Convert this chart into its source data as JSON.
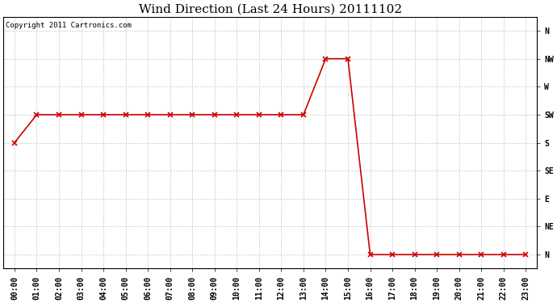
{
  "title": "Wind Direction (Last 24 Hours) 20111102",
  "copyright_text": "Copyright 2011 Cartronics.com",
  "background_color": "#ffffff",
  "plot_bg_color": "#ffffff",
  "line_color": "#cc0000",
  "grid_color": "#c8c8c8",
  "x_labels": [
    "00:00",
    "01:00",
    "02:00",
    "03:00",
    "04:00",
    "05:00",
    "06:00",
    "07:00",
    "08:00",
    "09:00",
    "10:00",
    "11:00",
    "12:00",
    "13:00",
    "14:00",
    "15:00",
    "16:00",
    "17:00",
    "18:00",
    "19:00",
    "20:00",
    "21:00",
    "22:00",
    "23:00"
  ],
  "y_labels_top_to_bottom": [
    "N",
    "NW",
    "W",
    "SW",
    "S",
    "SE",
    "E",
    "NE",
    "N"
  ],
  "data_hours": [
    0,
    1,
    2,
    3,
    4,
    5,
    6,
    7,
    8,
    9,
    10,
    11,
    12,
    13,
    14,
    15,
    16,
    17,
    18,
    19,
    20,
    21,
    22,
    23
  ],
  "data_dirs": [
    4,
    5,
    5,
    5,
    5,
    5,
    5,
    5,
    5,
    5,
    5,
    5,
    5,
    5,
    7,
    7,
    0,
    0,
    0,
    0,
    0,
    0,
    0,
    0
  ],
  "marker": "x",
  "marker_size": 4,
  "line_width": 1.2,
  "title_fontsize": 11,
  "tick_fontsize": 7,
  "copyright_fontsize": 6.5,
  "figsize": [
    6.9,
    3.75
  ],
  "dpi": 100
}
